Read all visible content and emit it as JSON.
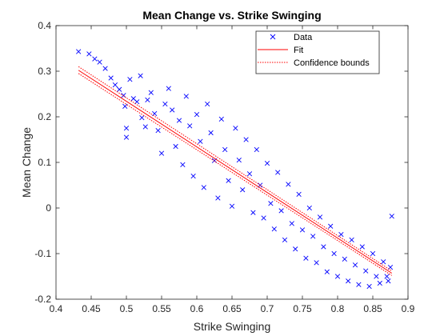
{
  "chart_data": {
    "type": "scatter",
    "title": "Mean Change vs. Strike Swinging",
    "xlabel": "Strike Swinging",
    "ylabel": "Mean Change",
    "xlim": [
      0.4,
      0.9
    ],
    "ylim": [
      -0.2,
      0.4
    ],
    "xticks": [
      "0.4",
      "0.45",
      "0.5",
      "0.55",
      "0.6",
      "0.65",
      "0.7",
      "0.75",
      "0.8",
      "0.85",
      "0.9"
    ],
    "yticks": [
      "-0.2",
      "-0.1",
      "0",
      "0.1",
      "0.2",
      "0.3",
      "0.4"
    ],
    "grid": false,
    "legend_position": "top-right",
    "legend": [
      "Data",
      "Fit",
      "Confidence bounds"
    ],
    "colors": {
      "data": "#0000ff",
      "fit": "#ff0000",
      "bounds": "#ff0000",
      "axes": "#262626"
    },
    "fit": {
      "x": [
        0.432,
        0.877
      ],
      "y": [
        0.302,
        -0.143
      ]
    },
    "bounds": {
      "x": [
        0.432,
        0.877
      ],
      "upper": [
        0.31,
        -0.138
      ],
      "lower": [
        0.295,
        -0.148
      ]
    },
    "points": [
      [
        0.432,
        0.343
      ],
      [
        0.447,
        0.338
      ],
      [
        0.455,
        0.327
      ],
      [
        0.462,
        0.32
      ],
      [
        0.47,
        0.306
      ],
      [
        0.478,
        0.285
      ],
      [
        0.484,
        0.27
      ],
      [
        0.49,
        0.26
      ],
      [
        0.496,
        0.247
      ],
      [
        0.498,
        0.223
      ],
      [
        0.5,
        0.175
      ],
      [
        0.5,
        0.155
      ],
      [
        0.505,
        0.282
      ],
      [
        0.51,
        0.24
      ],
      [
        0.515,
        0.233
      ],
      [
        0.52,
        0.29
      ],
      [
        0.522,
        0.198
      ],
      [
        0.527,
        0.178
      ],
      [
        0.53,
        0.237
      ],
      [
        0.535,
        0.253
      ],
      [
        0.54,
        0.207
      ],
      [
        0.545,
        0.17
      ],
      [
        0.55,
        0.12
      ],
      [
        0.555,
        0.228
      ],
      [
        0.56,
        0.262
      ],
      [
        0.565,
        0.215
      ],
      [
        0.57,
        0.135
      ],
      [
        0.575,
        0.192
      ],
      [
        0.58,
        0.095
      ],
      [
        0.585,
        0.245
      ],
      [
        0.59,
        0.18
      ],
      [
        0.595,
        0.07
      ],
      [
        0.6,
        0.205
      ],
      [
        0.605,
        0.146
      ],
      [
        0.61,
        0.045
      ],
      [
        0.615,
        0.228
      ],
      [
        0.62,
        0.165
      ],
      [
        0.625,
        0.104
      ],
      [
        0.63,
        0.022
      ],
      [
        0.635,
        0.195
      ],
      [
        0.64,
        0.128
      ],
      [
        0.645,
        0.06
      ],
      [
        0.65,
        0.004
      ],
      [
        0.655,
        0.175
      ],
      [
        0.66,
        0.105
      ],
      [
        0.665,
        0.04
      ],
      [
        0.67,
        0.15
      ],
      [
        0.675,
        0.075
      ],
      [
        0.68,
        -0.01
      ],
      [
        0.685,
        0.128
      ],
      [
        0.69,
        0.05
      ],
      [
        0.695,
        -0.022
      ],
      [
        0.7,
        0.098
      ],
      [
        0.705,
        0.01
      ],
      [
        0.71,
        -0.046
      ],
      [
        0.715,
        0.078
      ],
      [
        0.72,
        -0.006
      ],
      [
        0.725,
        -0.07
      ],
      [
        0.73,
        0.052
      ],
      [
        0.735,
        -0.034
      ],
      [
        0.74,
        -0.09
      ],
      [
        0.745,
        0.03
      ],
      [
        0.75,
        -0.048
      ],
      [
        0.755,
        -0.11
      ],
      [
        0.76,
        0.0
      ],
      [
        0.765,
        -0.062
      ],
      [
        0.77,
        -0.12
      ],
      [
        0.775,
        -0.02
      ],
      [
        0.78,
        -0.085
      ],
      [
        0.785,
        -0.14
      ],
      [
        0.79,
        -0.04
      ],
      [
        0.795,
        -0.1
      ],
      [
        0.8,
        -0.15
      ],
      [
        0.805,
        -0.058
      ],
      [
        0.81,
        -0.112
      ],
      [
        0.815,
        -0.16
      ],
      [
        0.82,
        -0.07
      ],
      [
        0.825,
        -0.125
      ],
      [
        0.83,
        -0.168
      ],
      [
        0.835,
        -0.085
      ],
      [
        0.84,
        -0.138
      ],
      [
        0.845,
        -0.172
      ],
      [
        0.85,
        -0.1
      ],
      [
        0.855,
        -0.15
      ],
      [
        0.86,
        -0.165
      ],
      [
        0.865,
        -0.118
      ],
      [
        0.87,
        -0.15
      ],
      [
        0.875,
        -0.13
      ],
      [
        0.877,
        -0.018
      ],
      [
        0.872,
        -0.16
      ]
    ]
  }
}
